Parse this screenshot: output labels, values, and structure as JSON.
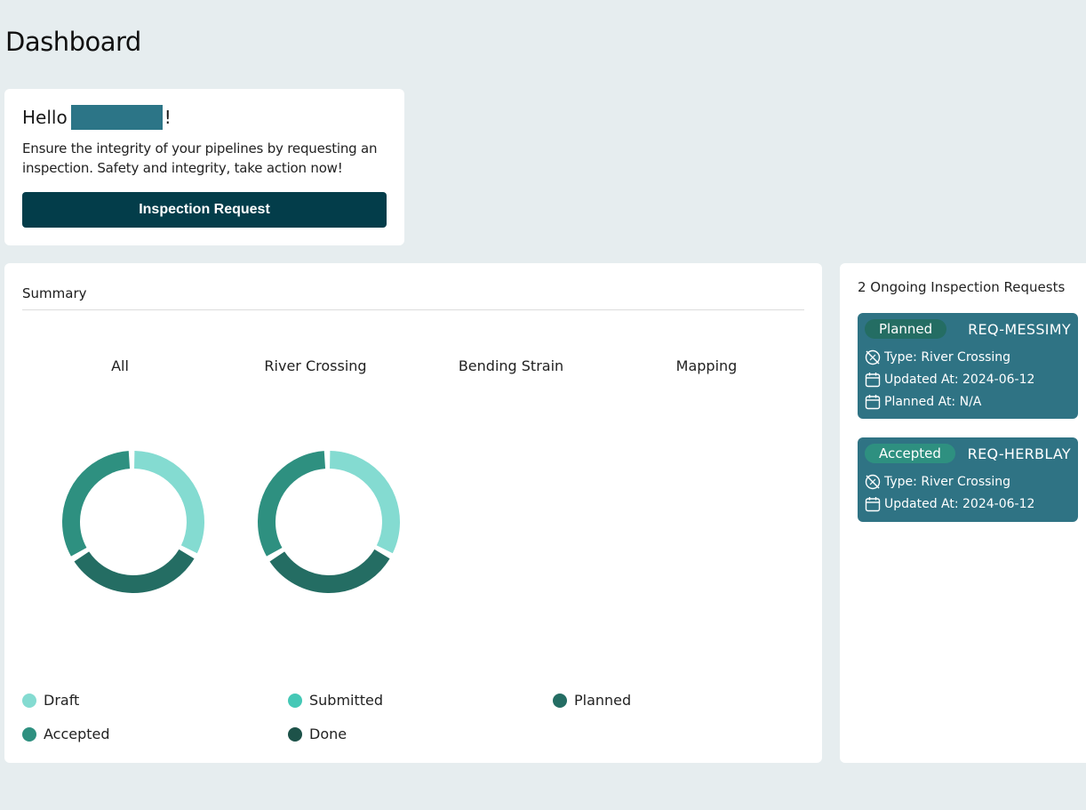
{
  "page": {
    "title": "Dashboard"
  },
  "welcome": {
    "greeting": "Hello",
    "exclaim": "!",
    "message": "Ensure the integrity of your pipelines by requesting an inspection. Safety and integrity, take action now!",
    "button_label": "Inspection Request"
  },
  "summary": {
    "title": "Summary",
    "charts": [
      {
        "title": "All"
      },
      {
        "title": "River Crossing"
      },
      {
        "title": "Bending Strain"
      },
      {
        "title": "Mapping"
      }
    ]
  },
  "chart_data": {
    "type": "pie",
    "categories": [
      "Draft",
      "Submitted",
      "Planned",
      "Accepted",
      "Done"
    ],
    "colors": {
      "Draft": "#84dbd1",
      "Submitted": "#45c8b6",
      "Planned": "#246d63",
      "Accepted": "#2e9080",
      "Done": "#1d5249"
    },
    "series": [
      {
        "name": "All",
        "values": [
          1,
          0,
          1,
          1,
          0
        ]
      },
      {
        "name": "River Crossing",
        "values": [
          1,
          0,
          1,
          1,
          0
        ]
      },
      {
        "name": "Bending Strain",
        "values": [
          0,
          0,
          0,
          0,
          0
        ]
      },
      {
        "name": "Mapping",
        "values": [
          0,
          0,
          0,
          0,
          0
        ]
      }
    ],
    "legend_position": "bottom"
  },
  "legend": {
    "items": [
      {
        "label": "Draft",
        "color": "#84dbd1"
      },
      {
        "label": "Submitted",
        "color": "#45c8b6"
      },
      {
        "label": "Planned",
        "color": "#246d63"
      },
      {
        "label": "Accepted",
        "color": "#2e9080"
      },
      {
        "label": "Done",
        "color": "#1d5249"
      }
    ]
  },
  "ongoing": {
    "title": "2 Ongoing Inspection Requests",
    "requests": [
      {
        "status": "Planned",
        "id": "REQ-MESSIMY",
        "type": "Type: River Crossing",
        "updated": "Updated At: 2024-06-12",
        "planned": "Planned At: N/A"
      },
      {
        "status": "Accepted",
        "id": "REQ-HERBLAY",
        "type": "Type: River Crossing",
        "updated": "Updated At: 2024-06-12"
      }
    ]
  }
}
